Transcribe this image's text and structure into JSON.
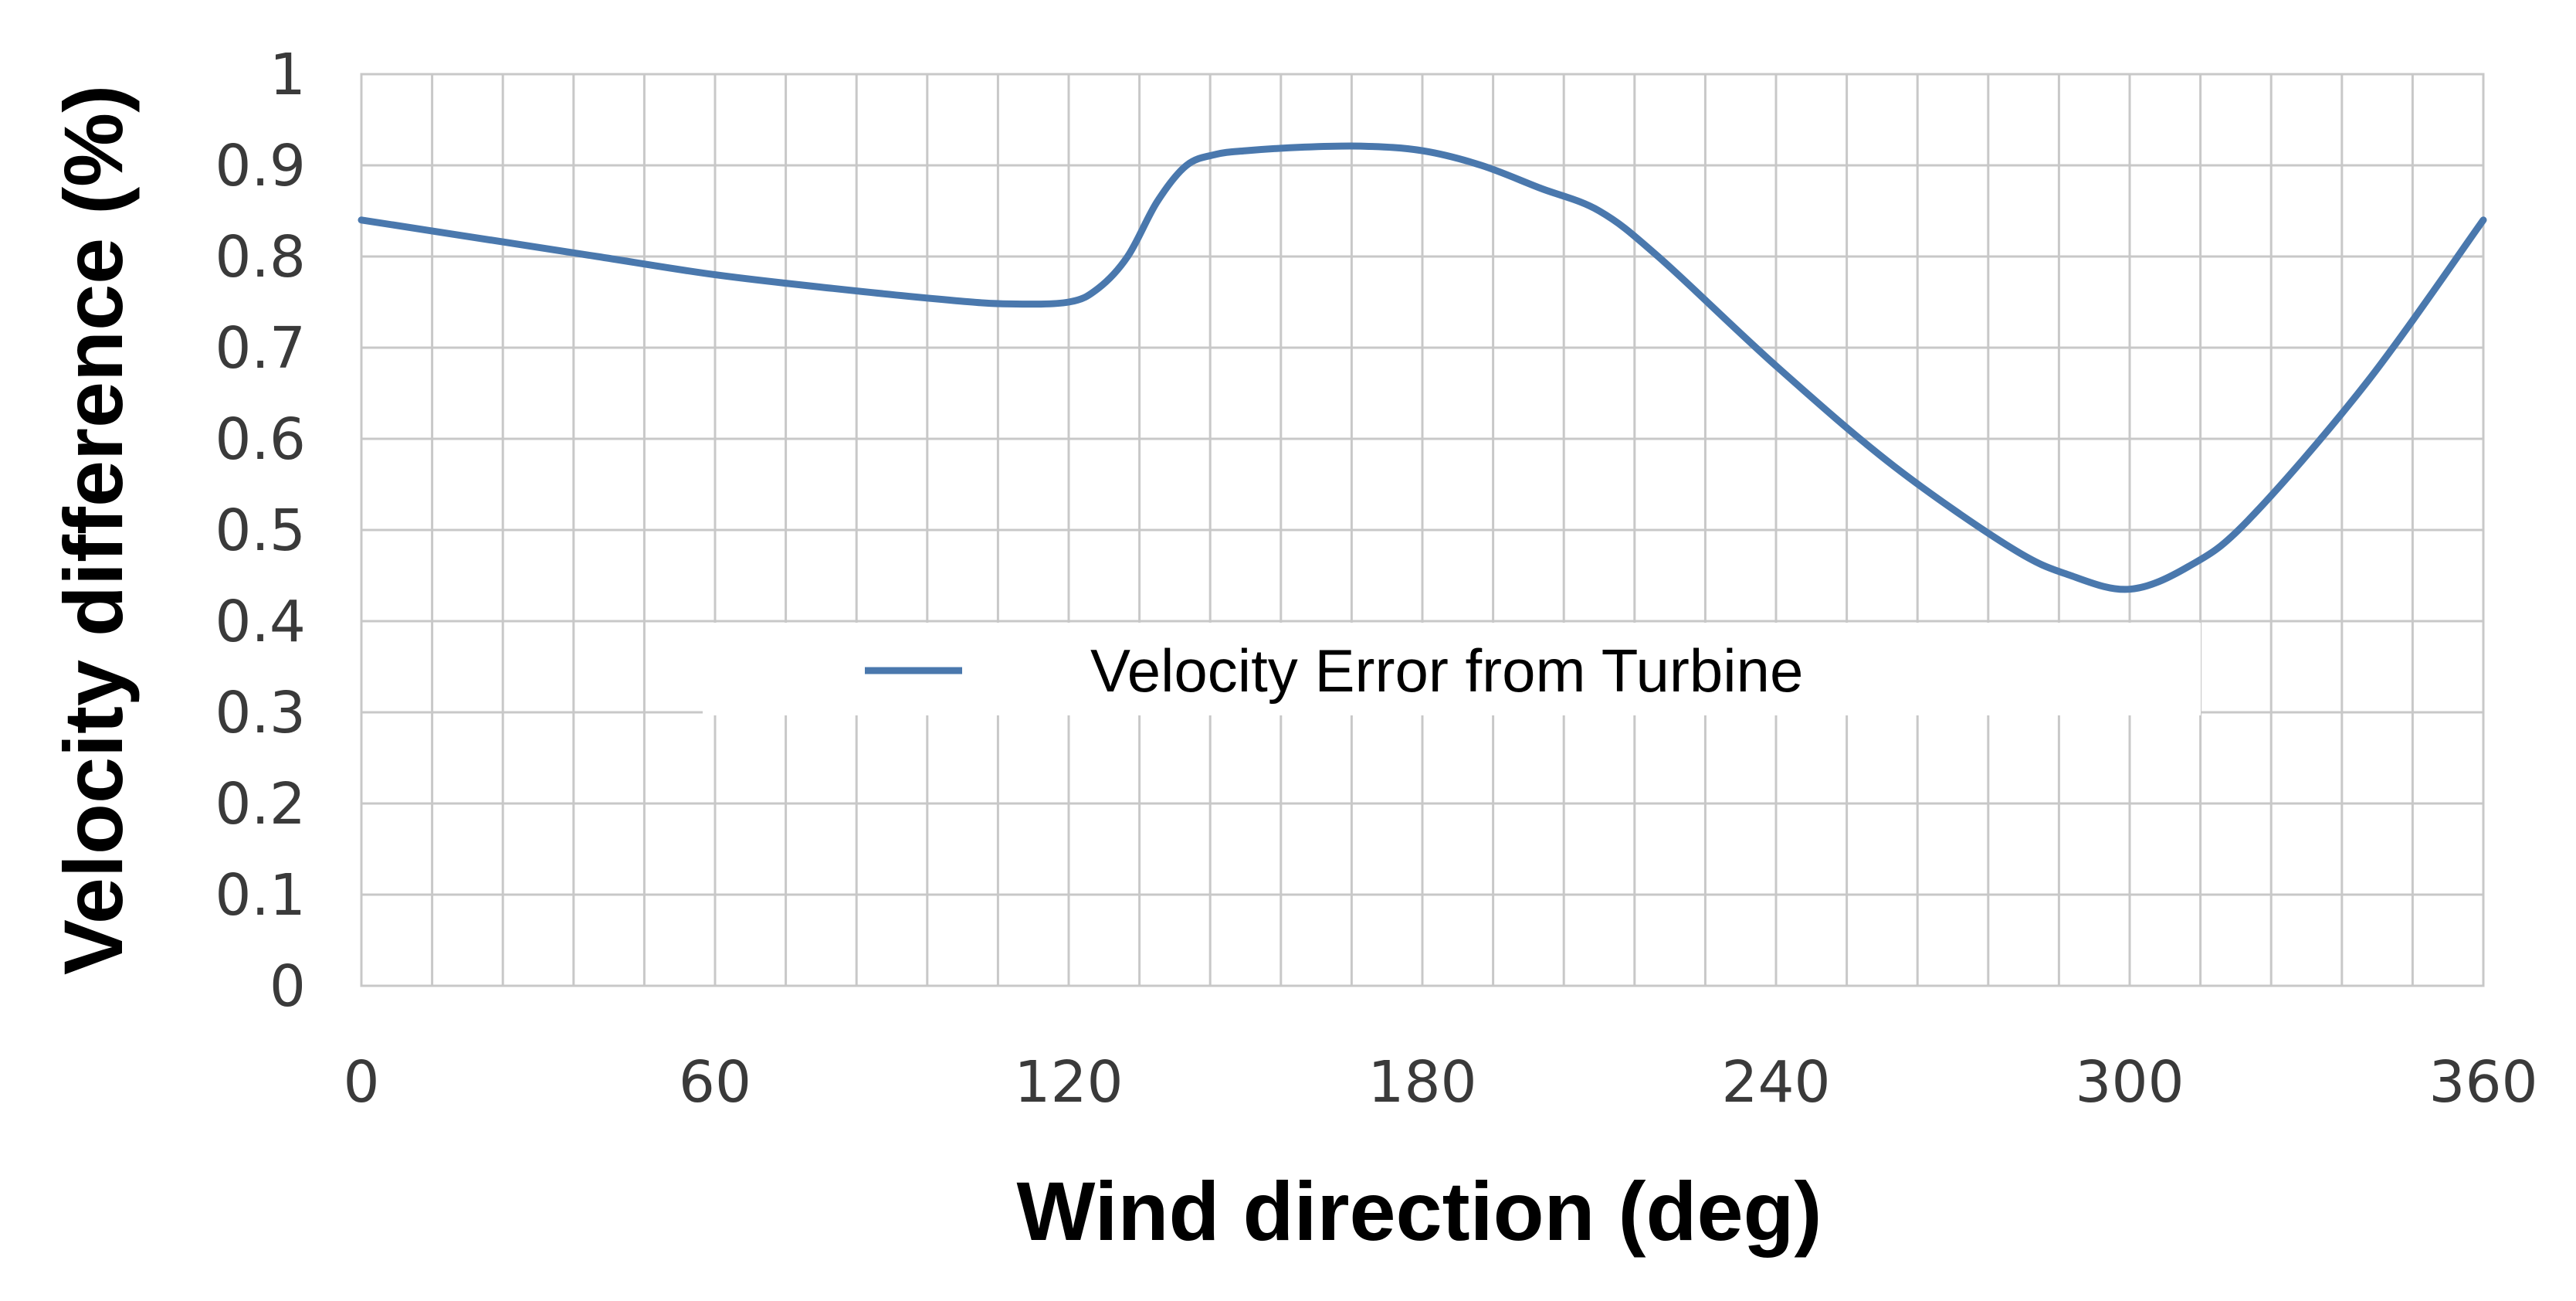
{
  "chart_data": {
    "type": "line",
    "title": "",
    "xlabel": "Wind direction (deg)",
    "ylabel": "Velocity difference (%)",
    "xlim": [
      0,
      360
    ],
    "ylim": [
      0,
      1
    ],
    "x_ticks": [
      0,
      60,
      120,
      180,
      240,
      300,
      360
    ],
    "x_tick_labels": [
      "0",
      "60",
      "120",
      "180",
      "240",
      "300",
      "360"
    ],
    "y_ticks": [
      0,
      0.1,
      0.2,
      0.3,
      0.4,
      0.5,
      0.6,
      0.7,
      0.8,
      0.9,
      1
    ],
    "y_tick_labels": [
      "0",
      "0.1",
      "0.2",
      "0.3",
      "0.4",
      "0.5",
      "0.6",
      "0.7",
      "0.8",
      "0.9",
      "1"
    ],
    "x_minor_step": 12,
    "grid": true,
    "legend_position": "center",
    "series": [
      {
        "name": "Velocity Error from Turbine",
        "color": "#4a78ad",
        "x": [
          0,
          20,
          40,
          60,
          80,
          100,
          110,
          120,
          125,
          130,
          135,
          140,
          145,
          150,
          160,
          170,
          180,
          190,
          200,
          210,
          220,
          240,
          260,
          280,
          290,
          300,
          310,
          320,
          340,
          360
        ],
        "y": [
          0.84,
          0.82,
          0.8,
          0.78,
          0.765,
          0.752,
          0.748,
          0.75,
          0.765,
          0.8,
          0.86,
          0.9,
          0.912,
          0.916,
          0.92,
          0.921,
          0.916,
          0.9,
          0.875,
          0.85,
          0.8,
          0.68,
          0.57,
          0.48,
          0.45,
          0.435,
          0.46,
          0.51,
          0.66,
          0.84
        ]
      }
    ]
  }
}
